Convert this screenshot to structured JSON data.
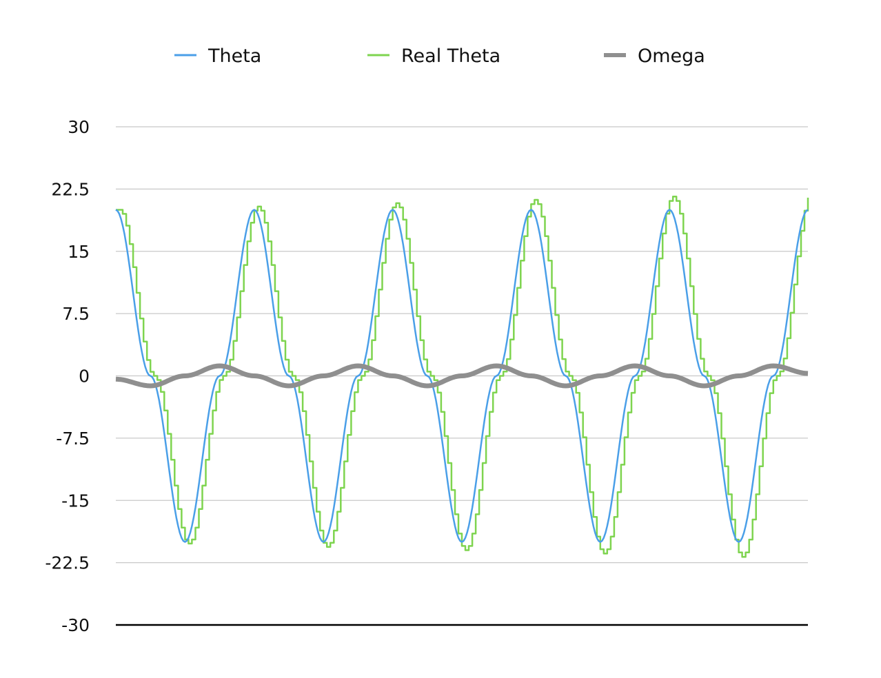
{
  "chart_data": {
    "type": "line",
    "title": "",
    "xlabel": "",
    "ylabel": "",
    "ylim": [
      -30,
      30
    ],
    "yticks": [
      "30",
      "22.5",
      "15",
      "7.5",
      "0",
      "-7.5",
      "-15",
      "-22.5",
      "-30"
    ],
    "ytick_values": [
      30,
      22.5,
      15,
      7.5,
      0,
      -7.5,
      -15,
      -22.5,
      -30
    ],
    "grid": true,
    "legend_position": "top",
    "x": [
      0,
      1,
      2,
      3,
      4,
      5,
      6,
      7,
      8,
      9,
      10,
      11,
      12,
      13,
      14,
      15,
      16,
      17,
      18,
      19,
      20
    ],
    "series": [
      {
        "name": "Theta",
        "color": "#4A9FE8",
        "style": "smooth",
        "values": [
          20,
          0,
          -20,
          0,
          20,
          0,
          -20,
          0,
          20,
          0,
          -20,
          0,
          20,
          0,
          -20,
          0,
          20,
          0,
          -20,
          0,
          20
        ]
      },
      {
        "name": "Real Theta",
        "color": "#7ED44F",
        "style": "stepped",
        "values": [
          20,
          0,
          -20.2,
          0,
          20.4,
          0,
          -20.6,
          0,
          20.8,
          0,
          -21,
          0,
          21.2,
          0,
          -21.4,
          0,
          21.6,
          0,
          -21.8,
          0,
          22
        ]
      },
      {
        "name": "Omega",
        "color": "#8F8F8F",
        "style": "thick",
        "values": [
          -0.4,
          -1.2,
          0,
          1.2,
          0,
          -1.2,
          0,
          1.2,
          0,
          -1.2,
          0,
          1.2,
          0,
          -1.2,
          0,
          1.2,
          0,
          -1.2,
          0,
          1.2,
          0.3
        ]
      }
    ]
  }
}
